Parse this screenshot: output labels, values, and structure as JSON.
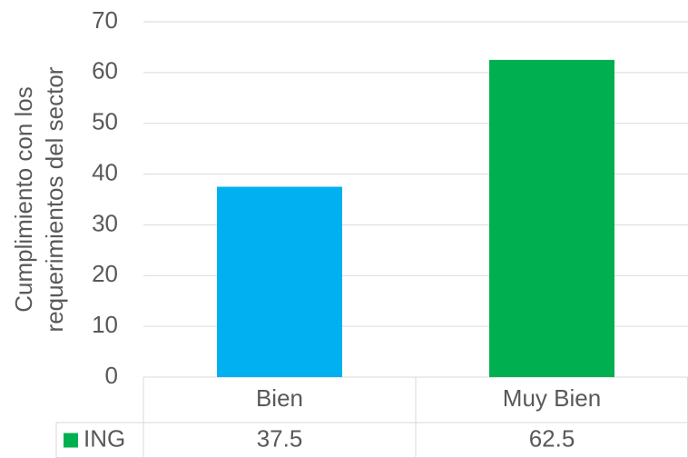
{
  "chart_data": {
    "type": "bar",
    "y_label": [
      "Cumplimiento con los",
      "requerimientos del sector"
    ],
    "categories": [
      "Bien",
      "Muy Bien"
    ],
    "series": [
      {
        "name": "ING",
        "color": "#00b050",
        "colors": [
          "#00b0f0",
          "#00b050"
        ],
        "values": [
          37.5,
          62.5
        ]
      }
    ],
    "ylim": [
      0,
      70
    ],
    "yticks": [
      0,
      10,
      20,
      30,
      40,
      50,
      60,
      70
    ],
    "grid": true,
    "data_table": true
  }
}
